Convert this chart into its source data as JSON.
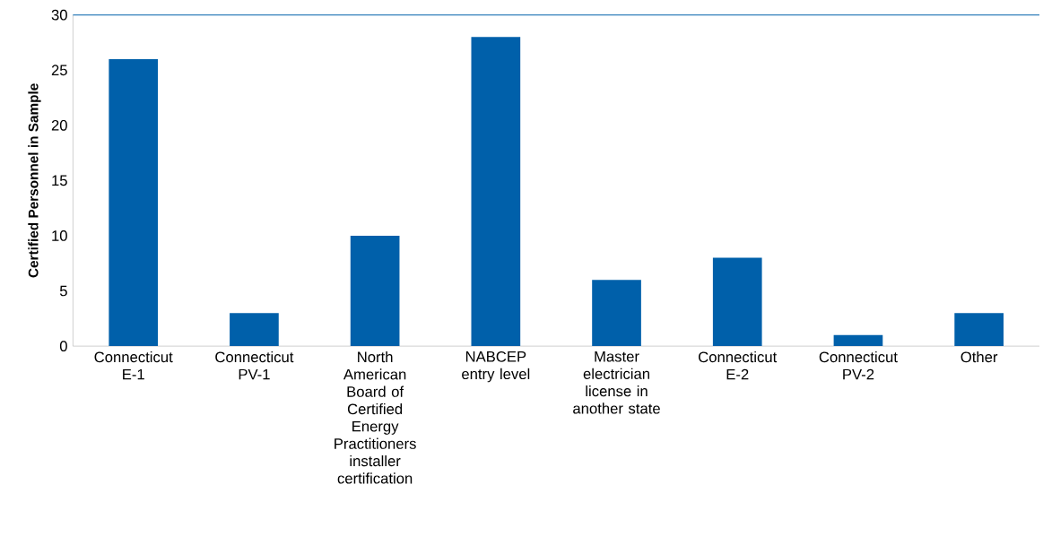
{
  "chart_data": {
    "type": "bar",
    "ylabel": "Certified Personnel in Sample",
    "categories": [
      "Connecticut E-1",
      "Connecticut PV-1",
      "North American Board of Certified Energy Practitioners installer certification",
      "NABCEP entry level",
      "Master electrician license in another state",
      "Connecticut E-2",
      "Connecticut PV-2",
      "Other"
    ],
    "values": [
      26,
      3,
      10,
      28,
      6,
      8,
      1,
      3
    ],
    "color": "#0060AA",
    "ylim": [
      0,
      30
    ],
    "yticks": [
      0,
      5,
      10,
      15,
      20,
      25,
      30
    ],
    "grid": false
  }
}
